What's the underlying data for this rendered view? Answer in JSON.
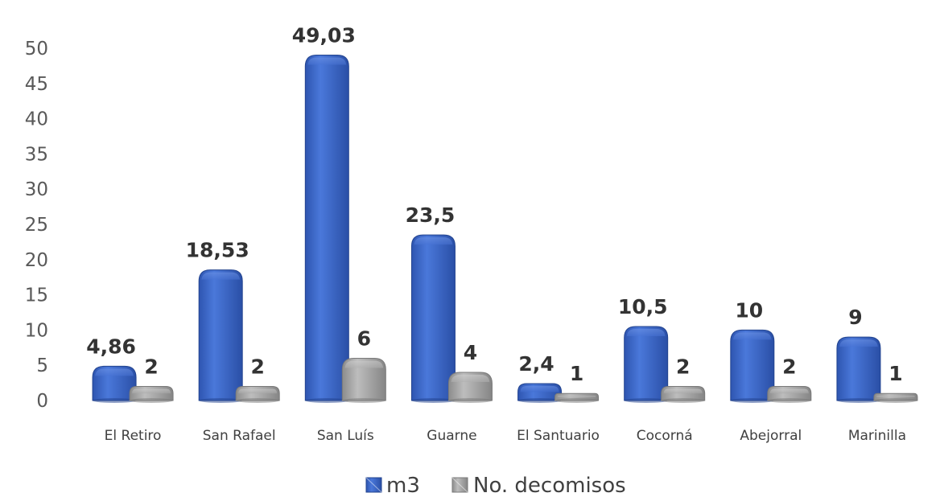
{
  "chart_data": {
    "type": "bar",
    "categories": [
      "El Retiro",
      "San Rafael",
      "San Luís",
      "Guarne",
      "El Santuario",
      "Cocorná",
      "Abejorral",
      "Marinilla"
    ],
    "series": [
      {
        "name": "m3",
        "values": [
          4.86,
          18.53,
          49.03,
          23.5,
          2.4,
          10.5,
          10,
          9
        ],
        "labels": [
          "4,86",
          "18,53",
          "49,03",
          "23,5",
          "2,4",
          "10,5",
          "10",
          "9"
        ],
        "color": "#3A66C8"
      },
      {
        "name": "No. decomisos",
        "values": [
          2,
          2,
          6,
          4,
          1,
          2,
          2,
          1
        ],
        "labels": [
          "2",
          "2",
          "6",
          "4",
          "1",
          "2",
          "2",
          "1"
        ],
        "color": "#A6A6A6"
      }
    ],
    "yticks": [
      "0",
      "5",
      "10",
      "15",
      "20",
      "25",
      "30",
      "35",
      "40",
      "45",
      "50"
    ],
    "ylim": [
      0,
      50
    ],
    "grid": false,
    "legend_position": "bottom"
  }
}
